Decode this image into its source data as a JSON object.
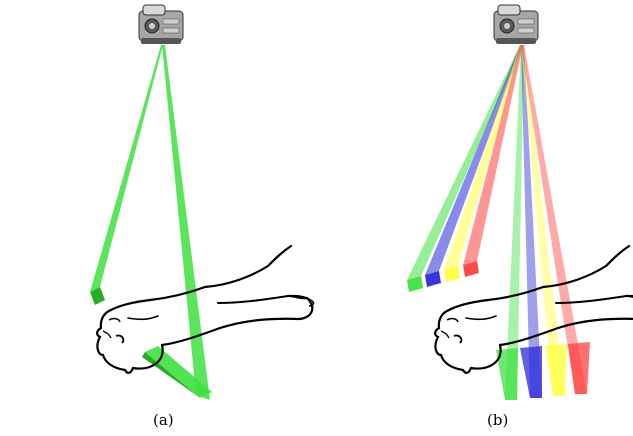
{
  "panels": [
    {
      "label": "(a)",
      "beams": [
        {
          "color": "#3fe03f"
        }
      ]
    },
    {
      "label": "(b)",
      "beams": [
        {
          "color": "#3fe03f"
        },
        {
          "color": "#2a2ad8"
        },
        {
          "color": "#ffff40"
        },
        {
          "color": "#ff4040"
        }
      ]
    }
  ],
  "colors": {
    "outline": "#000000",
    "projector_body": "#9a9a9a",
    "projector_dark": "#4a4a4a"
  }
}
